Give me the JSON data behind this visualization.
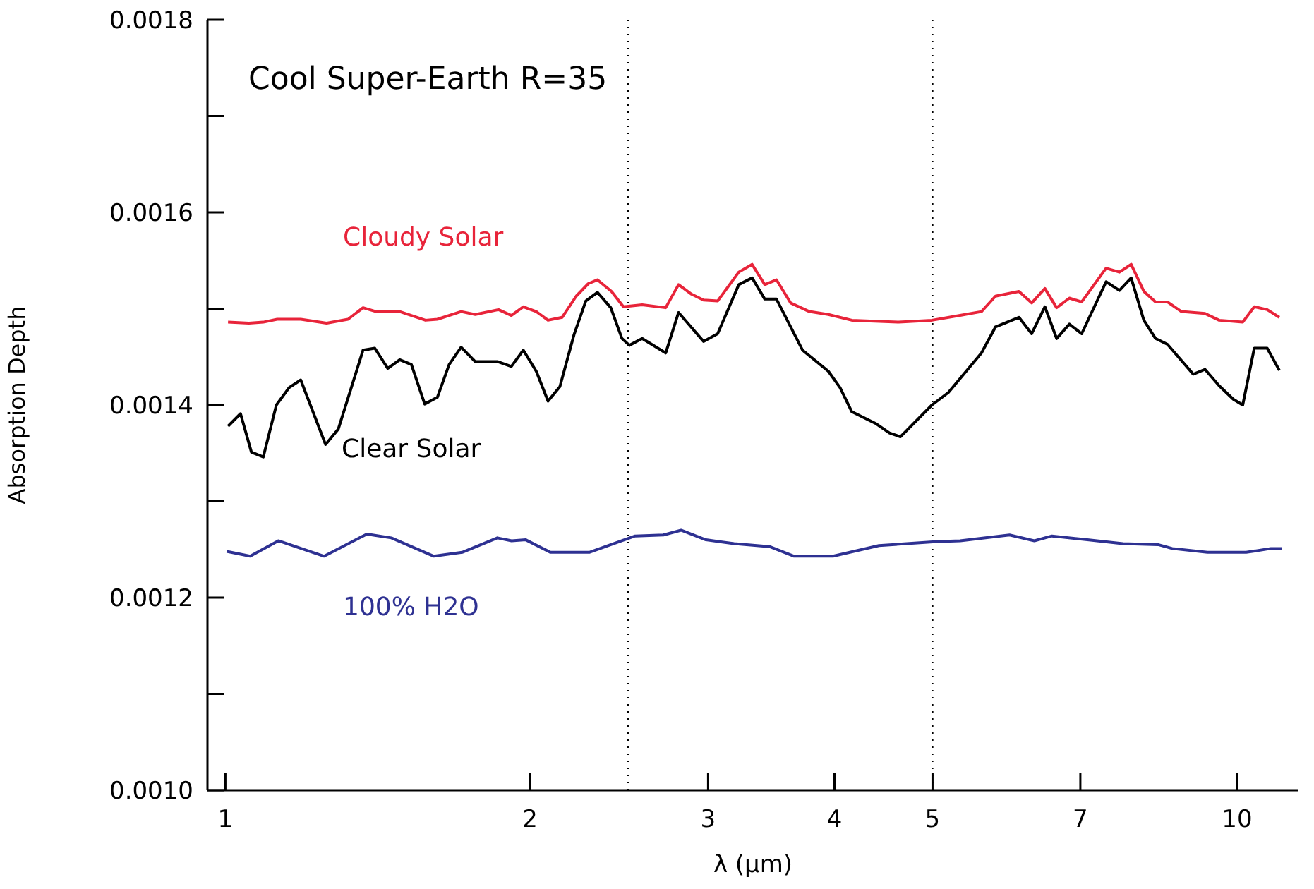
{
  "chart_data": {
    "type": "line",
    "title": "Cool Super-Earth R=35",
    "xlabel": "λ (μm)",
    "ylabel": "Absorption Depth",
    "log": "x",
    "marker": "none",
    "line_style": "solid",
    "xlim": [
      0.96,
      11.5
    ],
    "xticks": [
      1,
      2,
      3,
      4,
      5,
      7,
      10
    ],
    "ylim": [
      0.001,
      0.0018
    ],
    "yticks": [
      {
        "value": 0.001,
        "label": "0.0010"
      },
      {
        "value": 0.0011,
        "label": null
      },
      {
        "value": 0.0012,
        "label": "0.0012"
      },
      {
        "value": 0.0013,
        "label": null
      },
      {
        "value": 0.0014,
        "label": "0.0014"
      },
      {
        "value": 0.0015,
        "label": null
      },
      {
        "value": 0.0016,
        "label": "0.0016"
      },
      {
        "value": 0.0017,
        "label": null
      },
      {
        "value": 0.0018,
        "label": "0.0018"
      }
    ],
    "ref_lines": [
      {
        "axis": "x",
        "value": 2.5,
        "color": "#000000",
        "line_style": "dotted"
      },
      {
        "axis": "x",
        "value": 5,
        "color": "#000000",
        "line_style": "dotted"
      }
    ],
    "series": [
      {
        "name": "Cloudy Solar",
        "color": "#e8243a",
        "x": [
          1.006,
          1.055,
          1.09,
          1.125,
          1.187,
          1.259,
          1.322,
          1.368,
          1.409,
          1.487,
          1.577,
          1.62,
          1.71,
          1.766,
          1.862,
          1.917,
          1.97,
          2.029,
          2.084,
          2.152,
          2.222,
          2.284,
          2.332,
          2.408,
          2.474,
          2.582,
          2.724,
          2.805,
          2.89,
          2.969,
          3.066,
          3.217,
          3.316,
          3.413,
          3.505,
          3.62,
          3.778,
          3.945,
          4.161,
          4.632,
          4.993,
          5.324,
          5.589,
          5.77,
          6.087,
          6.266,
          6.457,
          6.632,
          6.827,
          7.021,
          7.422,
          7.651,
          7.858,
          8.088,
          8.307,
          8.534,
          8.811,
          9.296,
          9.601,
          10.13,
          10.4,
          10.71,
          11.01
        ],
        "values": [
          0.001486,
          0.001485,
          0.001486,
          0.001489,
          0.001489,
          0.001485,
          0.001489,
          0.001501,
          0.001497,
          0.001497,
          0.001488,
          0.001489,
          0.001497,
          0.001494,
          0.001499,
          0.001493,
          0.001502,
          0.001497,
          0.001488,
          0.001491,
          0.001513,
          0.001526,
          0.00153,
          0.001518,
          0.001502,
          0.001504,
          0.001501,
          0.001525,
          0.001515,
          0.001509,
          0.001508,
          0.001538,
          0.001546,
          0.001525,
          0.00153,
          0.001506,
          0.001497,
          0.001494,
          0.001488,
          0.001486,
          0.001488,
          0.001493,
          0.001497,
          0.001513,
          0.001518,
          0.001506,
          0.001521,
          0.001501,
          0.001511,
          0.001507,
          0.001542,
          0.001538,
          0.001546,
          0.001518,
          0.001507,
          0.001507,
          0.001497,
          0.001495,
          0.001488,
          0.001486,
          0.001502,
          0.001499,
          0.001491
        ]
      },
      {
        "name": "Clear Solar",
        "color": "#000000",
        "x": [
          1.006,
          1.035,
          1.061,
          1.09,
          1.123,
          1.156,
          1.187,
          1.256,
          1.293,
          1.368,
          1.405,
          1.447,
          1.487,
          1.527,
          1.574,
          1.62,
          1.664,
          1.71,
          1.766,
          1.859,
          1.917,
          1.97,
          2.029,
          2.084,
          2.141,
          2.211,
          2.271,
          2.332,
          2.404,
          2.466,
          2.508,
          2.582,
          2.724,
          2.805,
          2.969,
          3.066,
          3.217,
          3.316,
          3.413,
          3.505,
          3.719,
          3.945,
          4.051,
          4.161,
          4.39,
          4.533,
          4.647,
          4.993,
          5.184,
          5.589,
          5.77,
          6.087,
          6.266,
          6.457,
          6.632,
          6.827,
          7.021,
          7.422,
          7.651,
          7.858,
          8.088,
          8.307,
          8.534,
          9.051,
          9.296,
          9.601,
          9.913,
          10.13,
          10.4,
          10.71,
          11.01
        ],
        "values": [
          0.001378,
          0.001391,
          0.001351,
          0.001346,
          0.0014,
          0.001418,
          0.001426,
          0.001359,
          0.001375,
          0.001457,
          0.001459,
          0.001438,
          0.001447,
          0.001442,
          0.001401,
          0.001408,
          0.001442,
          0.00146,
          0.001445,
          0.001445,
          0.00144,
          0.001457,
          0.001435,
          0.001404,
          0.001419,
          0.001473,
          0.001508,
          0.001517,
          0.001501,
          0.001469,
          0.001462,
          0.001469,
          0.001454,
          0.001496,
          0.001466,
          0.001474,
          0.001525,
          0.001532,
          0.00151,
          0.00151,
          0.001457,
          0.001435,
          0.001418,
          0.001393,
          0.001381,
          0.001371,
          0.001367,
          0.0014,
          0.001413,
          0.001454,
          0.001481,
          0.001491,
          0.001474,
          0.001502,
          0.001469,
          0.001484,
          0.001474,
          0.001528,
          0.001519,
          0.001532,
          0.001488,
          0.001469,
          0.001463,
          0.001432,
          0.001437,
          0.00142,
          0.001406,
          0.0014,
          0.001459,
          0.001459,
          0.001436
        ]
      },
      {
        "name": "100% H2O",
        "color": "#2e3192",
        "x": [
          1.003,
          1.058,
          1.128,
          1.252,
          1.38,
          1.459,
          1.607,
          1.714,
          1.857,
          1.918,
          1.981,
          2.096,
          2.289,
          2.541,
          2.71,
          2.821,
          2.985,
          3.183,
          3.45,
          3.649,
          3.987,
          4.426,
          5.033,
          5.324,
          5.958,
          6.304,
          6.561,
          7.112,
          7.708,
          8.354,
          8.627,
          9.348,
          10.21,
          10.8,
          11.07
        ],
        "values": [
          0.001248,
          0.001243,
          0.001259,
          0.001243,
          0.001266,
          0.001262,
          0.001243,
          0.001247,
          0.001262,
          0.001259,
          0.00126,
          0.001247,
          0.001247,
          0.001264,
          0.001265,
          0.00127,
          0.00126,
          0.001256,
          0.001253,
          0.001243,
          0.001243,
          0.001254,
          0.001258,
          0.001259,
          0.001265,
          0.001259,
          0.001264,
          0.00126,
          0.001256,
          0.001255,
          0.001251,
          0.001247,
          0.001247,
          0.001251,
          0.001251
        ]
      }
    ]
  }
}
